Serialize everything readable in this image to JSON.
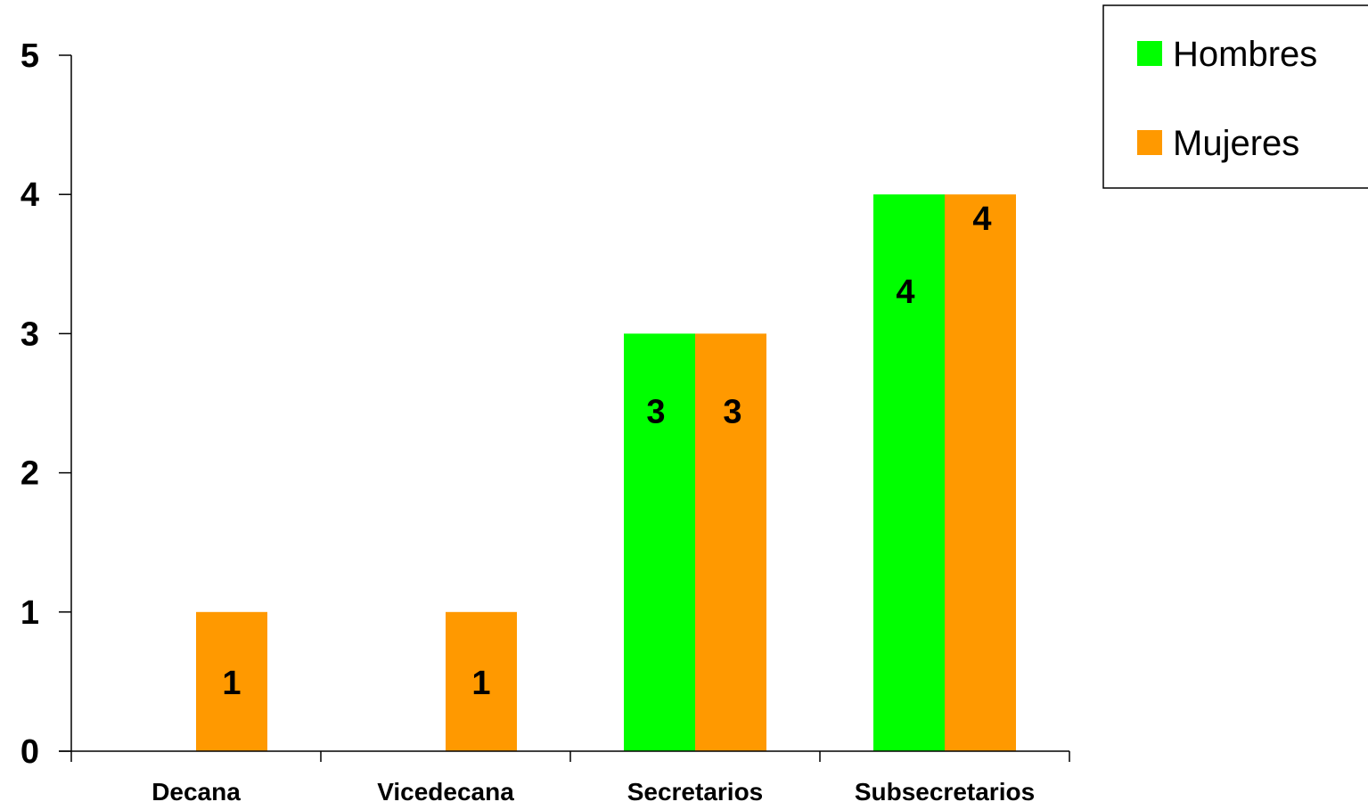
{
  "chart_data": {
    "type": "bar",
    "categories": [
      "Decana",
      "Vicedecana",
      "Secretarios",
      "Subsecretarios"
    ],
    "series": [
      {
        "name": "Hombres",
        "values": [
          0,
          0,
          3,
          4
        ],
        "color": "#00FF00"
      },
      {
        "name": "Mujeres",
        "values": [
          1,
          1,
          3,
          4
        ],
        "color": "#FF9900"
      }
    ],
    "data_labels": [
      [
        null,
        null,
        "3",
        "4"
      ],
      [
        "1",
        "1",
        "3",
        "4"
      ]
    ],
    "ylim": [
      0,
      5
    ],
    "yticks": [
      "0",
      "1",
      "2",
      "3",
      "4",
      "5"
    ],
    "title": "",
    "xlabel": "",
    "ylabel": "",
    "grid": false,
    "legend_position": "top-right"
  }
}
